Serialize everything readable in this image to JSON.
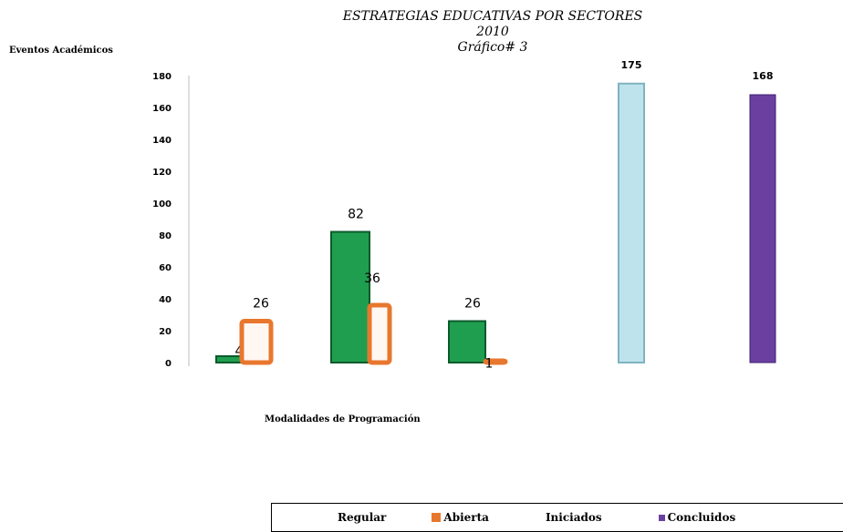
{
  "chart_data": {
    "type": "bar",
    "title_lines": [
      "ESTRATEGIAS EDUCATIVAS POR SECTORES",
      "2010",
      "Gráfico# 3"
    ],
    "ylabel": "Eventos Académicos",
    "xlabel": "Modalidades de Programación",
    "ylim": [
      0,
      180
    ],
    "yticks": [
      0,
      20,
      40,
      60,
      80,
      100,
      120,
      140,
      160,
      180
    ],
    "series": [
      {
        "name": "Regular",
        "color": "#1f9e4f"
      },
      {
        "name": "Abierta",
        "color": "#e8772e"
      },
      {
        "name": "Iniciados",
        "color": "#bfe3ec"
      },
      {
        "name": "Concluidos",
        "color": "#6b3fa0"
      }
    ],
    "bars": [
      {
        "series": "Regular",
        "value": 4,
        "label": "4"
      },
      {
        "series": "Abierta",
        "value": 26,
        "label": "26"
      },
      {
        "series": "Regular",
        "value": 82,
        "label": "82"
      },
      {
        "series": "Abierta",
        "value": 36,
        "label": "36"
      },
      {
        "series": "Regular",
        "value": 26,
        "label": "26"
      },
      {
        "series": "Abierta",
        "value": 1,
        "label": "1"
      },
      {
        "series": "Iniciados",
        "value": 175,
        "label": "175"
      },
      {
        "series": "Concluidos",
        "value": 168,
        "label": "168"
      }
    ],
    "grid": false,
    "legend_position": "bottom"
  }
}
